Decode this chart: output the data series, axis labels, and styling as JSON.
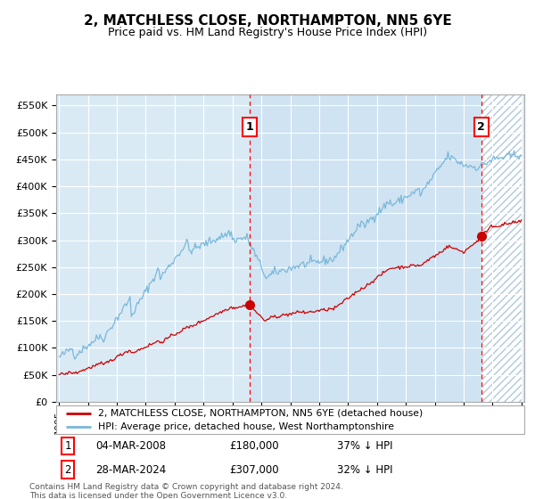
{
  "title": "2, MATCHLESS CLOSE, NORTHAMPTON, NN5 6YE",
  "subtitle": "Price paid vs. HM Land Registry's House Price Index (HPI)",
  "hpi_color": "#7ab8d9",
  "price_color": "#cc0000",
  "bg_color": "#daeaf5",
  "ylim": [
    0,
    570000
  ],
  "yticks": [
    0,
    50000,
    100000,
    150000,
    200000,
    250000,
    300000,
    350000,
    400000,
    450000,
    500000,
    550000
  ],
  "ytick_labels": [
    "£0",
    "£50K",
    "£100K",
    "£150K",
    "£200K",
    "£250K",
    "£300K",
    "£350K",
    "£400K",
    "£450K",
    "£500K",
    "£550K"
  ],
  "sale1_date": "04-MAR-2008",
  "sale1_price": 180000,
  "sale1_pct": "37%",
  "sale2_date": "28-MAR-2024",
  "sale2_price": 307000,
  "sale2_pct": "32%",
  "legend_label1": "2, MATCHLESS CLOSE, NORTHAMPTON, NN5 6YE (detached house)",
  "legend_label2": "HPI: Average price, detached house, West Northamptonshire",
  "footer": "Contains HM Land Registry data © Crown copyright and database right 2024.\nThis data is licensed under the Open Government Licence v3.0.",
  "sale1_year": 2008.17,
  "sale2_year": 2024.23,
  "xstart": 1995,
  "xend": 2027
}
